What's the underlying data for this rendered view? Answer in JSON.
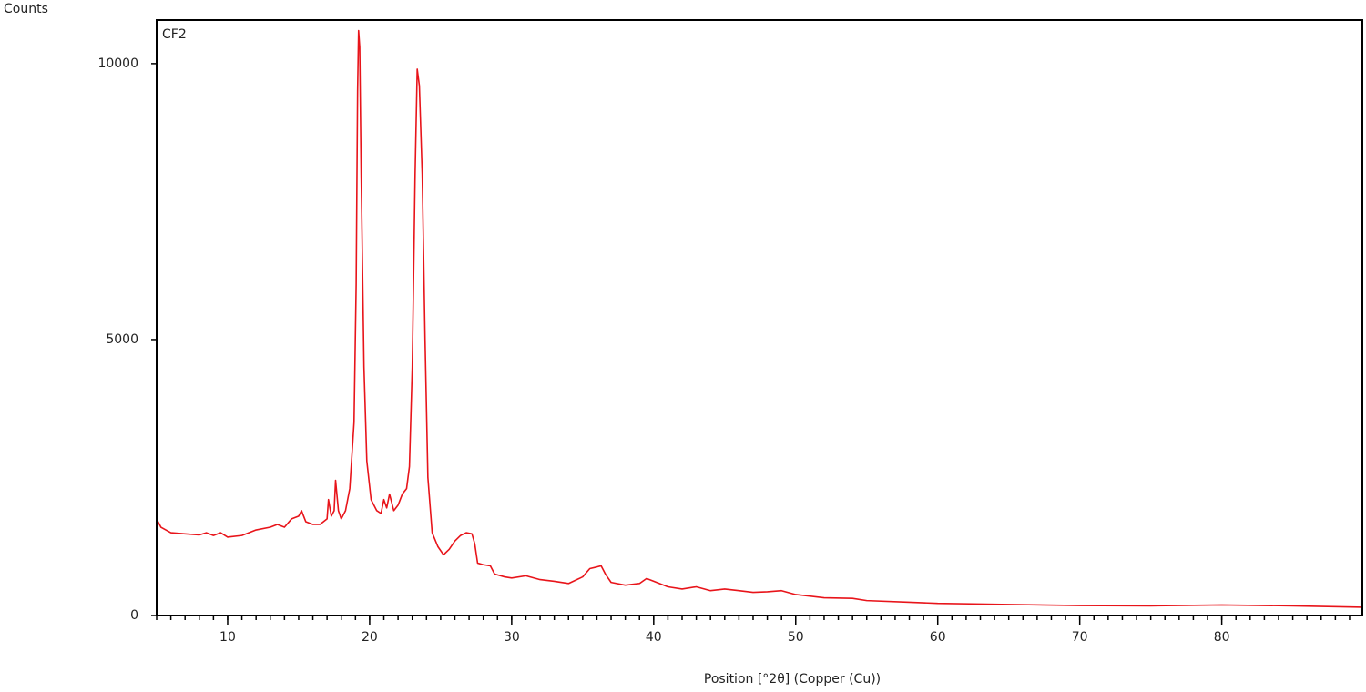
{
  "chart_data": {
    "type": "line",
    "ylabel": "Counts",
    "xlabel": "Position [°2θ] (Copper (Cu))",
    "annotation": "CF2",
    "xlim": [
      5,
      89.9
    ],
    "ylim": [
      0,
      10790
    ],
    "xticks": [
      10,
      20,
      30,
      40,
      50,
      60,
      70,
      80
    ],
    "yticks": [
      0,
      5000,
      10000
    ],
    "minor_tick_step": 1,
    "series": [
      {
        "color": "#e8141a",
        "x": [
          5.0,
          5.3,
          6,
          7,
          8,
          8.5,
          9,
          9.5,
          10,
          11,
          12,
          13,
          13.5,
          14,
          14.5,
          15,
          15.2,
          15.5,
          16,
          16.5,
          17,
          17.1,
          17.3,
          17.5,
          17.6,
          17.8,
          18,
          18.3,
          18.6,
          18.9,
          19.05,
          19.15,
          19.22,
          19.3,
          19.4,
          19.6,
          19.8,
          20.1,
          20.5,
          20.8,
          21.0,
          21.2,
          21.4,
          21.7,
          22.0,
          22.3,
          22.6,
          22.8,
          23.0,
          23.2,
          23.35,
          23.5,
          23.7,
          23.9,
          24.1,
          24.4,
          24.8,
          25.2,
          25.6,
          26,
          26.4,
          26.8,
          27.2,
          27.4,
          27.6,
          28,
          28.5,
          28.8,
          29.5,
          30,
          31,
          32,
          33,
          34,
          35,
          35.5,
          36,
          36.3,
          36.6,
          37,
          38,
          39,
          39.5,
          40,
          41,
          42,
          43,
          44,
          45,
          46,
          47,
          48,
          49,
          50,
          52,
          54,
          55,
          58,
          60,
          65,
          70,
          75,
          80,
          85,
          89.9
        ],
        "values": [
          1750,
          1600,
          1500,
          1480,
          1460,
          1500,
          1450,
          1500,
          1420,
          1450,
          1550,
          1600,
          1650,
          1600,
          1750,
          1800,
          1900,
          1700,
          1650,
          1650,
          1750,
          2100,
          1800,
          1900,
          2450,
          1900,
          1750,
          1900,
          2300,
          3500,
          6000,
          9500,
          10600,
          10300,
          8000,
          4500,
          2800,
          2100,
          1900,
          1850,
          2100,
          1950,
          2200,
          1900,
          2000,
          2200,
          2300,
          2700,
          4500,
          8000,
          9900,
          9600,
          8000,
          5000,
          2500,
          1500,
          1250,
          1100,
          1200,
          1350,
          1450,
          1500,
          1480,
          1300,
          950,
          920,
          900,
          750,
          700,
          680,
          720,
          650,
          620,
          580,
          700,
          850,
          880,
          900,
          750,
          600,
          550,
          580,
          670,
          620,
          520,
          480,
          520,
          450,
          480,
          450,
          420,
          430,
          450,
          380,
          320,
          310,
          270,
          240,
          220,
          200,
          180,
          175,
          190,
          175,
          150
        ]
      }
    ]
  }
}
